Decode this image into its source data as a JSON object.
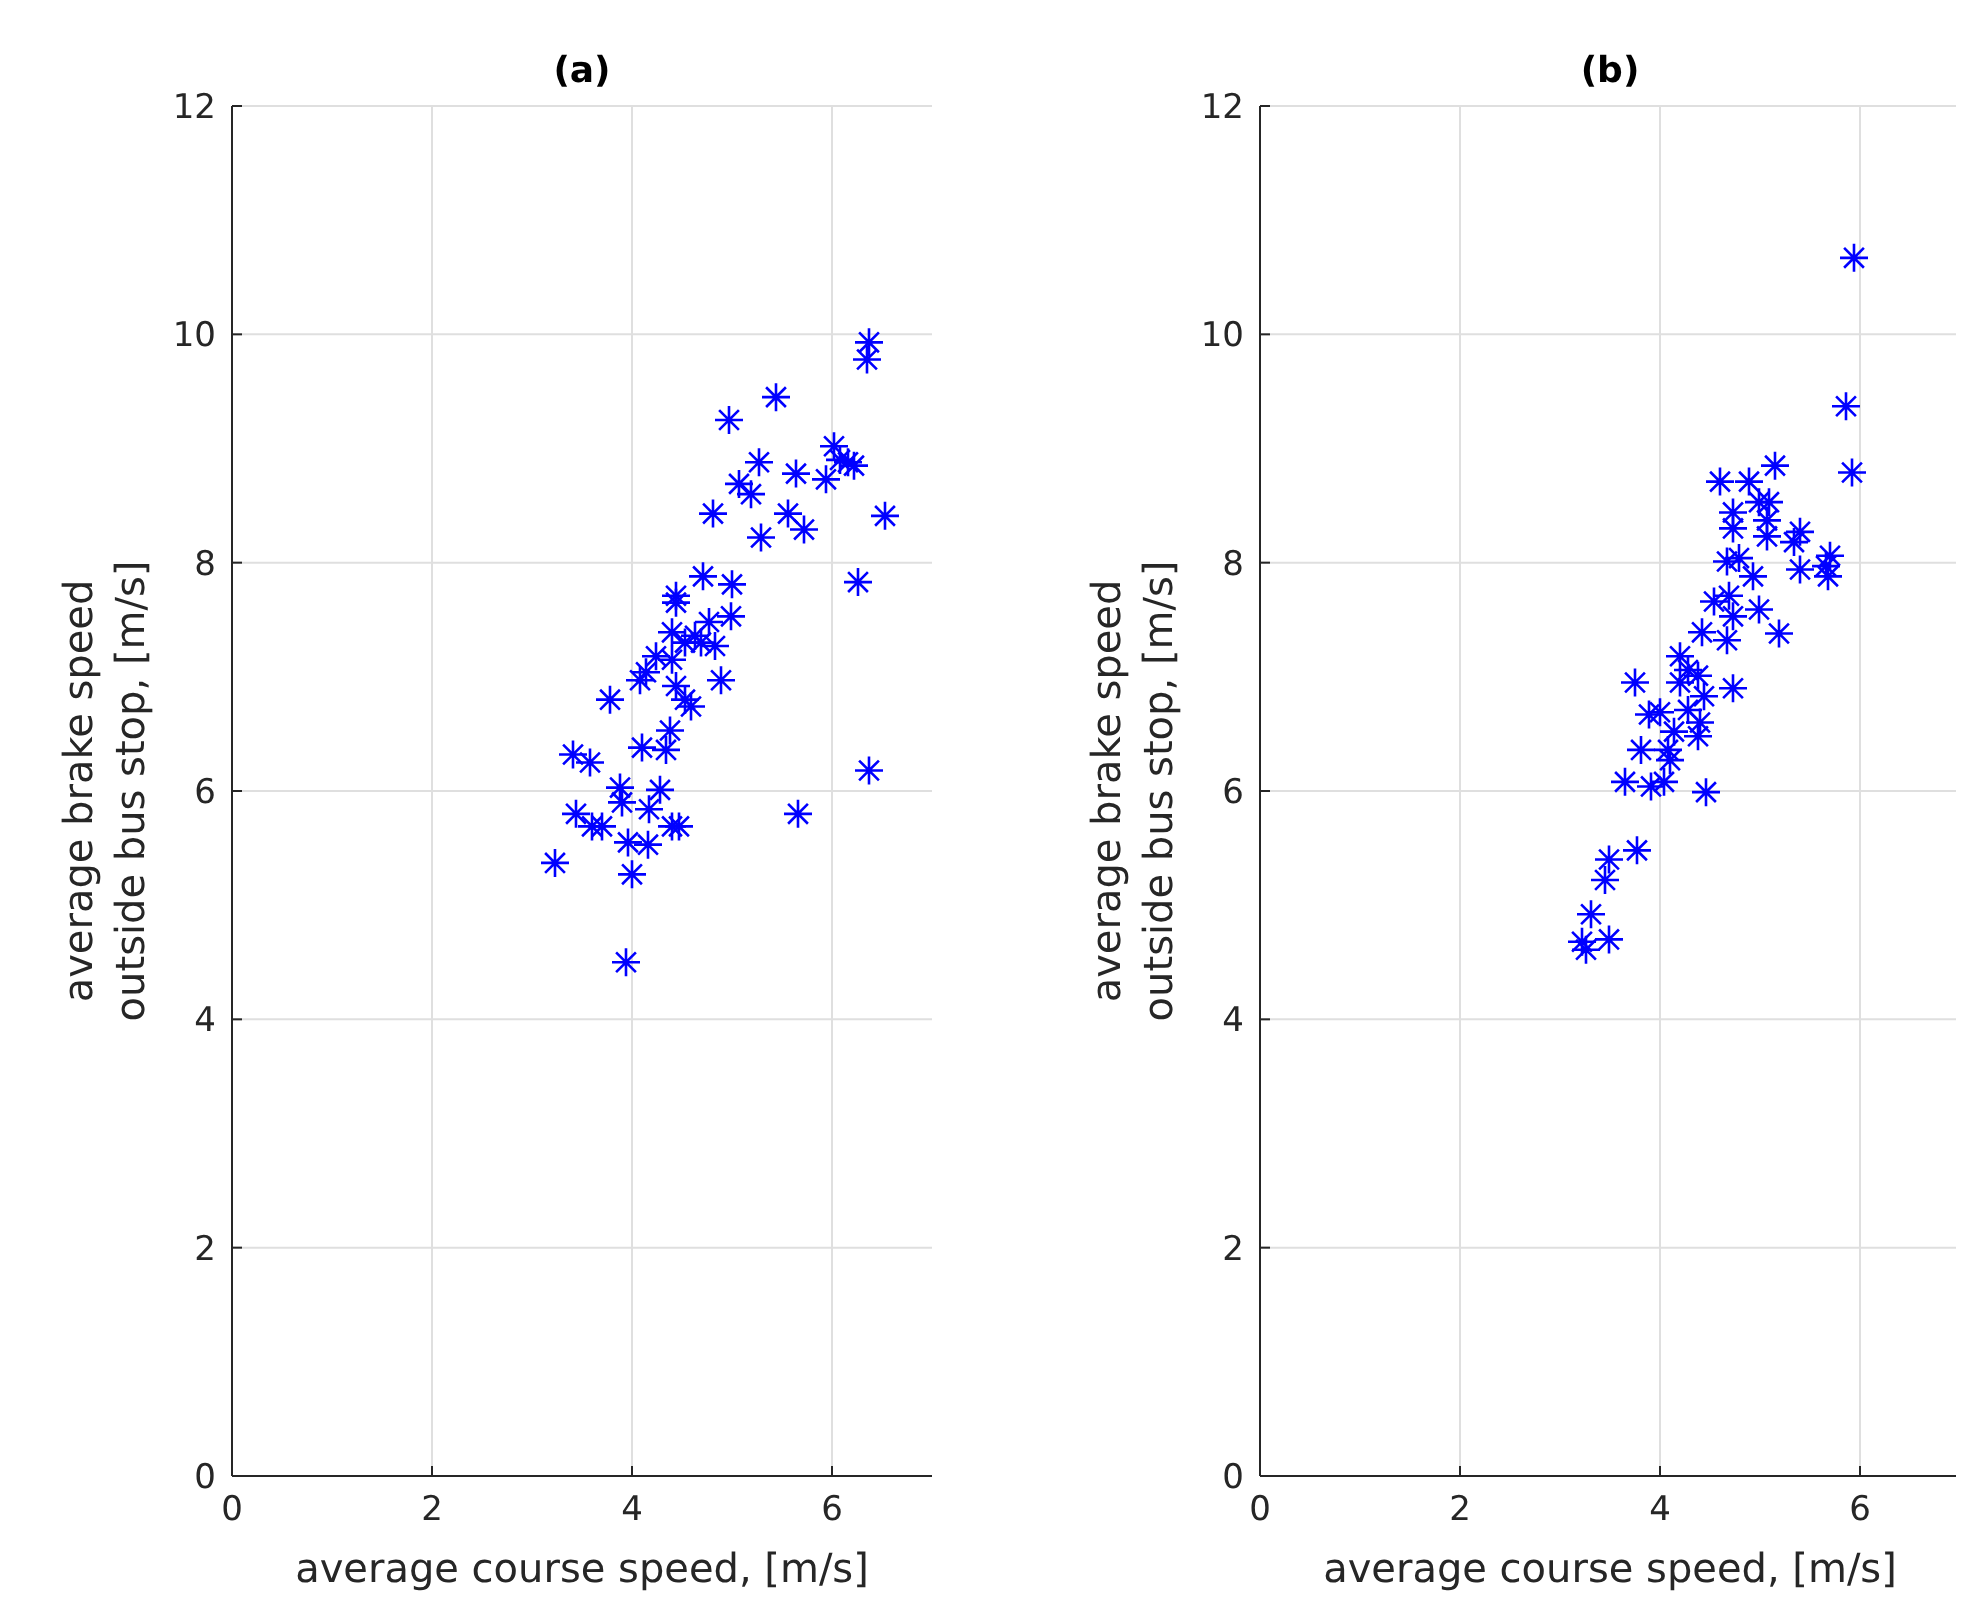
{
  "chart_data": [
    {
      "type": "scatter",
      "title": "(a)",
      "xlabel": "average course speed, [m/s]",
      "ylabel": "average brake speed\noutside bus stop, [m/s]",
      "xlim": [
        0,
        7
      ],
      "ylim": [
        0,
        12
      ],
      "xticks": [
        0,
        2,
        4,
        6
      ],
      "yticks": [
        0,
        2,
        4,
        6,
        8,
        10,
        12
      ],
      "grid": true,
      "marker": "cross",
      "series": [
        {
          "color": "#0000ff",
          "x": [
            6.37,
            6.35,
            5.44,
            4.97,
            6.02,
            6.08,
            6.22,
            6.16,
            5.27,
            5.64,
            5.94,
            5.07,
            5.19,
            6.53,
            4.81,
            5.56,
            5.72,
            5.29,
            4.71,
            5.0,
            6.26,
            4.44,
            4.44,
            4.99,
            4.77,
            4.63,
            4.69,
            4.4,
            4.53,
            4.83,
            4.24,
            4.4,
            4.14,
            4.08,
            4.44,
            4.89,
            3.78,
            4.53,
            4.59,
            4.38,
            4.1,
            4.34,
            3.41,
            3.58,
            3.88,
            4.28,
            3.9,
            4.17,
            3.44,
            3.6,
            3.7,
            5.66,
            6.37,
            4.4,
            4.47,
            3.96,
            4.16,
            3.23,
            4.0,
            3.94
          ],
          "values": [
            9.93,
            9.78,
            9.45,
            9.25,
            9.02,
            8.9,
            8.85,
            8.88,
            8.88,
            8.78,
            8.73,
            8.69,
            8.6,
            8.41,
            8.43,
            8.43,
            8.29,
            8.22,
            7.88,
            7.81,
            7.83,
            7.71,
            7.65,
            7.53,
            7.48,
            7.36,
            7.3,
            7.39,
            7.3,
            7.27,
            7.18,
            7.15,
            7.04,
            6.97,
            6.92,
            6.97,
            6.8,
            6.8,
            6.74,
            6.53,
            6.38,
            6.36,
            6.32,
            6.25,
            6.03,
            6.01,
            5.9,
            5.84,
            5.8,
            5.69,
            5.69,
            5.8,
            6.18,
            5.69,
            5.69,
            5.55,
            5.53,
            5.37,
            5.27,
            4.5
          ]
        }
      ]
    },
    {
      "type": "scatter",
      "title": "(b)",
      "xlabel": "average course speed, [m/s]",
      "ylabel": "average brake speed\noutside bus stop, [m/s]",
      "xlim": [
        0,
        7
      ],
      "ylim": [
        0,
        12
      ],
      "xticks": [
        0,
        2,
        4,
        6
      ],
      "yticks": [
        0,
        2,
        4,
        6,
        8,
        10,
        12
      ],
      "grid": true,
      "marker": "cross",
      "series": [
        {
          "color": "#0000ff",
          "x": [
            5.94,
            5.86,
            5.92,
            5.15,
            4.6,
            4.89,
            5.09,
            4.73,
            4.99,
            5.07,
            4.73,
            5.07,
            5.4,
            5.34,
            4.67,
            4.79,
            4.93,
            5.4,
            5.66,
            5.68,
            5.7,
            4.54,
            4.69,
            4.99,
            4.73,
            4.42,
            4.67,
            5.19,
            4.2,
            4.28,
            4.38,
            3.75,
            4.2,
            4.73,
            4.44,
            4.28,
            3.89,
            4.0,
            4.4,
            4.14,
            4.38,
            3.81,
            4.08,
            4.1,
            3.65,
            3.91,
            4.04,
            4.46,
            3.77,
            3.49,
            3.45,
            3.31,
            3.49,
            3.22,
            3.26
          ],
          "values": [
            10.67,
            9.37,
            8.79,
            8.85,
            8.71,
            8.71,
            8.53,
            8.44,
            8.53,
            8.37,
            8.3,
            8.23,
            8.27,
            8.18,
            8.01,
            8.04,
            7.88,
            7.94,
            7.97,
            7.88,
            8.06,
            7.66,
            7.71,
            7.59,
            7.53,
            7.39,
            7.32,
            7.38,
            7.18,
            7.06,
            7.01,
            6.95,
            6.95,
            6.9,
            6.83,
            6.71,
            6.67,
            6.69,
            6.6,
            6.52,
            6.48,
            6.36,
            6.36,
            6.27,
            6.08,
            6.04,
            6.08,
            5.99,
            5.48,
            5.4,
            5.22,
            4.92,
            4.7,
            4.68,
            4.61
          ]
        }
      ]
    }
  ]
}
